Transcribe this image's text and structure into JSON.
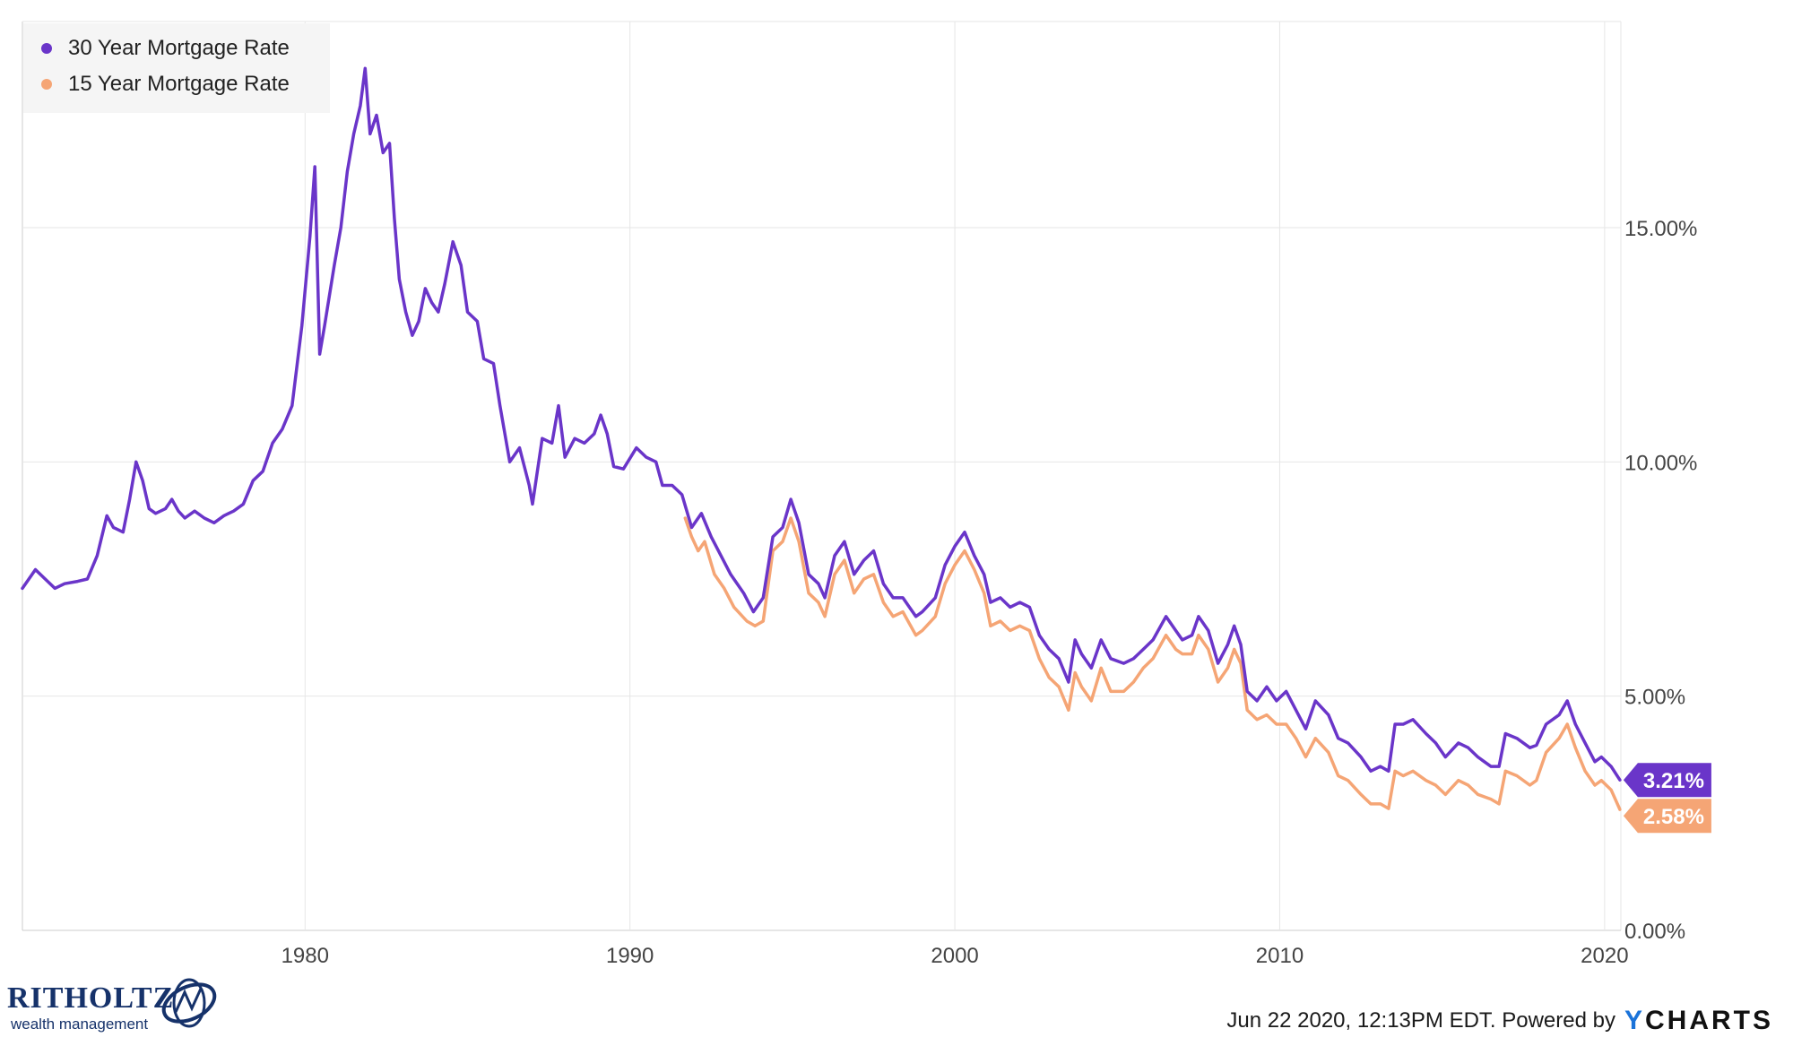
{
  "chart_data": {
    "type": "line",
    "series": [
      {
        "name": "30 Year Mortgage Rate",
        "color": "#6a35c9",
        "last_value_label": "3.21%",
        "points": [
          [
            1971.3,
            7.3
          ],
          [
            1971.7,
            7.7
          ],
          [
            1972.0,
            7.5
          ],
          [
            1972.3,
            7.3
          ],
          [
            1972.6,
            7.4
          ],
          [
            1973.0,
            7.45
          ],
          [
            1973.3,
            7.5
          ],
          [
            1973.6,
            8.0
          ],
          [
            1973.9,
            8.85
          ],
          [
            1974.1,
            8.6
          ],
          [
            1974.4,
            8.5
          ],
          [
            1974.6,
            9.2
          ],
          [
            1974.8,
            10.0
          ],
          [
            1975.0,
            9.6
          ],
          [
            1975.2,
            9.0
          ],
          [
            1975.4,
            8.9
          ],
          [
            1975.7,
            9.0
          ],
          [
            1975.9,
            9.2
          ],
          [
            1976.1,
            8.95
          ],
          [
            1976.3,
            8.8
          ],
          [
            1976.6,
            8.95
          ],
          [
            1976.9,
            8.8
          ],
          [
            1977.2,
            8.7
          ],
          [
            1977.5,
            8.85
          ],
          [
            1977.8,
            8.95
          ],
          [
            1978.1,
            9.1
          ],
          [
            1978.4,
            9.6
          ],
          [
            1978.7,
            9.8
          ],
          [
            1979.0,
            10.4
          ],
          [
            1979.3,
            10.7
          ],
          [
            1979.6,
            11.2
          ],
          [
            1979.9,
            12.9
          ],
          [
            1980.15,
            14.8
          ],
          [
            1980.3,
            16.3
          ],
          [
            1980.45,
            12.3
          ],
          [
            1980.6,
            12.9
          ],
          [
            1980.9,
            14.2
          ],
          [
            1981.1,
            15.0
          ],
          [
            1981.3,
            16.2
          ],
          [
            1981.5,
            17.0
          ],
          [
            1981.7,
            17.6
          ],
          [
            1981.85,
            18.4
          ],
          [
            1982.0,
            17.0
          ],
          [
            1982.2,
            17.4
          ],
          [
            1982.4,
            16.6
          ],
          [
            1982.6,
            16.8
          ],
          [
            1982.75,
            15.2
          ],
          [
            1982.9,
            13.9
          ],
          [
            1983.1,
            13.2
          ],
          [
            1983.3,
            12.7
          ],
          [
            1983.5,
            13.0
          ],
          [
            1983.7,
            13.7
          ],
          [
            1983.9,
            13.4
          ],
          [
            1984.1,
            13.2
          ],
          [
            1984.3,
            13.8
          ],
          [
            1984.55,
            14.7
          ],
          [
            1984.8,
            14.2
          ],
          [
            1985.0,
            13.2
          ],
          [
            1985.3,
            13.0
          ],
          [
            1985.5,
            12.2
          ],
          [
            1985.8,
            12.1
          ],
          [
            1986.0,
            11.2
          ],
          [
            1986.3,
            10.0
          ],
          [
            1986.6,
            10.3
          ],
          [
            1986.9,
            9.5
          ],
          [
            1987.0,
            9.1
          ],
          [
            1987.3,
            10.5
          ],
          [
            1987.6,
            10.4
          ],
          [
            1987.8,
            11.2
          ],
          [
            1988.0,
            10.1
          ],
          [
            1988.3,
            10.5
          ],
          [
            1988.6,
            10.4
          ],
          [
            1988.9,
            10.6
          ],
          [
            1989.1,
            11.0
          ],
          [
            1989.3,
            10.6
          ],
          [
            1989.5,
            9.9
          ],
          [
            1989.8,
            9.85
          ],
          [
            1990.2,
            10.3
          ],
          [
            1990.5,
            10.1
          ],
          [
            1990.8,
            10.0
          ],
          [
            1991.0,
            9.5
          ],
          [
            1991.3,
            9.5
          ],
          [
            1991.6,
            9.3
          ],
          [
            1991.9,
            8.6
          ],
          [
            1992.2,
            8.9
          ],
          [
            1992.5,
            8.4
          ],
          [
            1992.8,
            8.0
          ],
          [
            1993.1,
            7.6
          ],
          [
            1993.5,
            7.2
          ],
          [
            1993.8,
            6.8
          ],
          [
            1994.1,
            7.1
          ],
          [
            1994.4,
            8.4
          ],
          [
            1994.7,
            8.6
          ],
          [
            1994.95,
            9.2
          ],
          [
            1995.2,
            8.7
          ],
          [
            1995.5,
            7.6
          ],
          [
            1995.8,
            7.4
          ],
          [
            1996.0,
            7.1
          ],
          [
            1996.3,
            8.0
          ],
          [
            1996.6,
            8.3
          ],
          [
            1996.9,
            7.6
          ],
          [
            1997.2,
            7.9
          ],
          [
            1997.5,
            8.1
          ],
          [
            1997.8,
            7.4
          ],
          [
            1998.1,
            7.1
          ],
          [
            1998.4,
            7.1
          ],
          [
            1998.8,
            6.7
          ],
          [
            1999.0,
            6.8
          ],
          [
            1999.4,
            7.1
          ],
          [
            1999.7,
            7.8
          ],
          [
            2000.0,
            8.2
          ],
          [
            2000.3,
            8.5
          ],
          [
            2000.6,
            8.0
          ],
          [
            2000.9,
            7.6
          ],
          [
            2001.1,
            7.0
          ],
          [
            2001.4,
            7.1
          ],
          [
            2001.7,
            6.9
          ],
          [
            2002.0,
            7.0
          ],
          [
            2002.3,
            6.9
          ],
          [
            2002.6,
            6.3
          ],
          [
            2002.9,
            6.0
          ],
          [
            2003.2,
            5.8
          ],
          [
            2003.5,
            5.3
          ],
          [
            2003.7,
            6.2
          ],
          [
            2003.9,
            5.9
          ],
          [
            2004.2,
            5.6
          ],
          [
            2004.5,
            6.2
          ],
          [
            2004.8,
            5.8
          ],
          [
            2005.2,
            5.7
          ],
          [
            2005.5,
            5.8
          ],
          [
            2005.8,
            6.0
          ],
          [
            2006.1,
            6.2
          ],
          [
            2006.5,
            6.7
          ],
          [
            2006.8,
            6.4
          ],
          [
            2007.0,
            6.2
          ],
          [
            2007.3,
            6.3
          ],
          [
            2007.5,
            6.7
          ],
          [
            2007.8,
            6.4
          ],
          [
            2008.1,
            5.7
          ],
          [
            2008.4,
            6.1
          ],
          [
            2008.6,
            6.5
          ],
          [
            2008.8,
            6.1
          ],
          [
            2009.0,
            5.1
          ],
          [
            2009.3,
            4.9
          ],
          [
            2009.6,
            5.2
          ],
          [
            2009.9,
            4.9
          ],
          [
            2010.2,
            5.1
          ],
          [
            2010.5,
            4.7
          ],
          [
            2010.8,
            4.3
          ],
          [
            2011.1,
            4.9
          ],
          [
            2011.5,
            4.6
          ],
          [
            2011.8,
            4.1
          ],
          [
            2012.1,
            4.0
          ],
          [
            2012.5,
            3.7
          ],
          [
            2012.8,
            3.4
          ],
          [
            2013.1,
            3.5
          ],
          [
            2013.35,
            3.4
          ],
          [
            2013.55,
            4.4
          ],
          [
            2013.8,
            4.4
          ],
          [
            2014.1,
            4.5
          ],
          [
            2014.5,
            4.2
          ],
          [
            2014.8,
            4.0
          ],
          [
            2015.1,
            3.7
          ],
          [
            2015.5,
            4.0
          ],
          [
            2015.8,
            3.9
          ],
          [
            2016.1,
            3.7
          ],
          [
            2016.5,
            3.5
          ],
          [
            2016.75,
            3.5
          ],
          [
            2016.95,
            4.2
          ],
          [
            2017.3,
            4.1
          ],
          [
            2017.7,
            3.9
          ],
          [
            2017.9,
            3.95
          ],
          [
            2018.2,
            4.4
          ],
          [
            2018.6,
            4.6
          ],
          [
            2018.85,
            4.9
          ],
          [
            2019.1,
            4.4
          ],
          [
            2019.4,
            4.0
          ],
          [
            2019.7,
            3.6
          ],
          [
            2019.9,
            3.7
          ],
          [
            2020.2,
            3.5
          ],
          [
            2020.47,
            3.21
          ]
        ]
      },
      {
        "name": "15 Year Mortgage Rate",
        "color": "#f5a575",
        "last_value_label": "2.58%",
        "points": [
          [
            1991.7,
            8.8
          ],
          [
            1991.9,
            8.4
          ],
          [
            1992.1,
            8.1
          ],
          [
            1992.3,
            8.3
          ],
          [
            1992.6,
            7.6
          ],
          [
            1992.9,
            7.3
          ],
          [
            1993.2,
            6.9
          ],
          [
            1993.6,
            6.6
          ],
          [
            1993.85,
            6.5
          ],
          [
            1994.1,
            6.6
          ],
          [
            1994.4,
            8.1
          ],
          [
            1994.7,
            8.3
          ],
          [
            1994.95,
            8.8
          ],
          [
            1995.2,
            8.3
          ],
          [
            1995.5,
            7.2
          ],
          [
            1995.8,
            7.0
          ],
          [
            1996.0,
            6.7
          ],
          [
            1996.3,
            7.6
          ],
          [
            1996.6,
            7.9
          ],
          [
            1996.9,
            7.2
          ],
          [
            1997.2,
            7.5
          ],
          [
            1997.5,
            7.6
          ],
          [
            1997.8,
            7.0
          ],
          [
            1998.1,
            6.7
          ],
          [
            1998.4,
            6.8
          ],
          [
            1998.8,
            6.3
          ],
          [
            1999.0,
            6.4
          ],
          [
            1999.4,
            6.7
          ],
          [
            1999.7,
            7.4
          ],
          [
            2000.0,
            7.8
          ],
          [
            2000.3,
            8.1
          ],
          [
            2000.6,
            7.7
          ],
          [
            2000.9,
            7.2
          ],
          [
            2001.1,
            6.5
          ],
          [
            2001.4,
            6.6
          ],
          [
            2001.7,
            6.4
          ],
          [
            2002.0,
            6.5
          ],
          [
            2002.3,
            6.4
          ],
          [
            2002.6,
            5.8
          ],
          [
            2002.9,
            5.4
          ],
          [
            2003.2,
            5.2
          ],
          [
            2003.5,
            4.7
          ],
          [
            2003.7,
            5.5
          ],
          [
            2003.9,
            5.2
          ],
          [
            2004.2,
            4.9
          ],
          [
            2004.5,
            5.6
          ],
          [
            2004.8,
            5.1
          ],
          [
            2005.2,
            5.1
          ],
          [
            2005.5,
            5.3
          ],
          [
            2005.8,
            5.6
          ],
          [
            2006.1,
            5.8
          ],
          [
            2006.5,
            6.3
          ],
          [
            2006.8,
            6.0
          ],
          [
            2007.0,
            5.9
          ],
          [
            2007.3,
            5.9
          ],
          [
            2007.5,
            6.3
          ],
          [
            2007.8,
            6.0
          ],
          [
            2008.1,
            5.3
          ],
          [
            2008.4,
            5.6
          ],
          [
            2008.6,
            6.0
          ],
          [
            2008.8,
            5.7
          ],
          [
            2009.0,
            4.7
          ],
          [
            2009.3,
            4.5
          ],
          [
            2009.6,
            4.6
          ],
          [
            2009.9,
            4.4
          ],
          [
            2010.2,
            4.4
          ],
          [
            2010.5,
            4.1
          ],
          [
            2010.8,
            3.7
          ],
          [
            2011.1,
            4.1
          ],
          [
            2011.5,
            3.8
          ],
          [
            2011.8,
            3.3
          ],
          [
            2012.1,
            3.2
          ],
          [
            2012.5,
            2.9
          ],
          [
            2012.8,
            2.7
          ],
          [
            2013.1,
            2.7
          ],
          [
            2013.35,
            2.6
          ],
          [
            2013.55,
            3.4
          ],
          [
            2013.8,
            3.3
          ],
          [
            2014.1,
            3.4
          ],
          [
            2014.5,
            3.2
          ],
          [
            2014.8,
            3.1
          ],
          [
            2015.1,
            2.9
          ],
          [
            2015.5,
            3.2
          ],
          [
            2015.8,
            3.1
          ],
          [
            2016.1,
            2.9
          ],
          [
            2016.5,
            2.8
          ],
          [
            2016.75,
            2.7
          ],
          [
            2016.95,
            3.4
          ],
          [
            2017.3,
            3.3
          ],
          [
            2017.7,
            3.1
          ],
          [
            2017.9,
            3.2
          ],
          [
            2018.2,
            3.8
          ],
          [
            2018.6,
            4.1
          ],
          [
            2018.85,
            4.4
          ],
          [
            2019.1,
            3.9
          ],
          [
            2019.4,
            3.4
          ],
          [
            2019.7,
            3.1
          ],
          [
            2019.9,
            3.2
          ],
          [
            2020.2,
            3.0
          ],
          [
            2020.47,
            2.58
          ]
        ]
      }
    ],
    "x_ticks": [
      "1980",
      "1990",
      "2000",
      "2010",
      "2020"
    ],
    "x_tick_values": [
      1980,
      1990,
      2000,
      2010,
      2020
    ],
    "y_ticks": [
      "0.00%",
      "5.00%",
      "10.00%",
      "15.00%"
    ],
    "y_tick_values": [
      0,
      5,
      10,
      15
    ],
    "xlim": [
      1971.3,
      2020.5
    ],
    "ylim": [
      0,
      19.4
    ],
    "grid": true,
    "legend_position": "top-left"
  },
  "legend": {
    "items": [
      {
        "label": "30 Year Mortgage Rate",
        "color": "#6a35c9"
      },
      {
        "label": "15 Year Mortgage Rate",
        "color": "#f5a575"
      }
    ]
  },
  "footer": {
    "timestamp": "Jun 22 2020, 12:13PM EDT. Powered by",
    "logo_y": "Y",
    "logo_rest": "CHARTS"
  },
  "branding": {
    "name": "RITHOLTZ",
    "tagline": "wealth management"
  }
}
